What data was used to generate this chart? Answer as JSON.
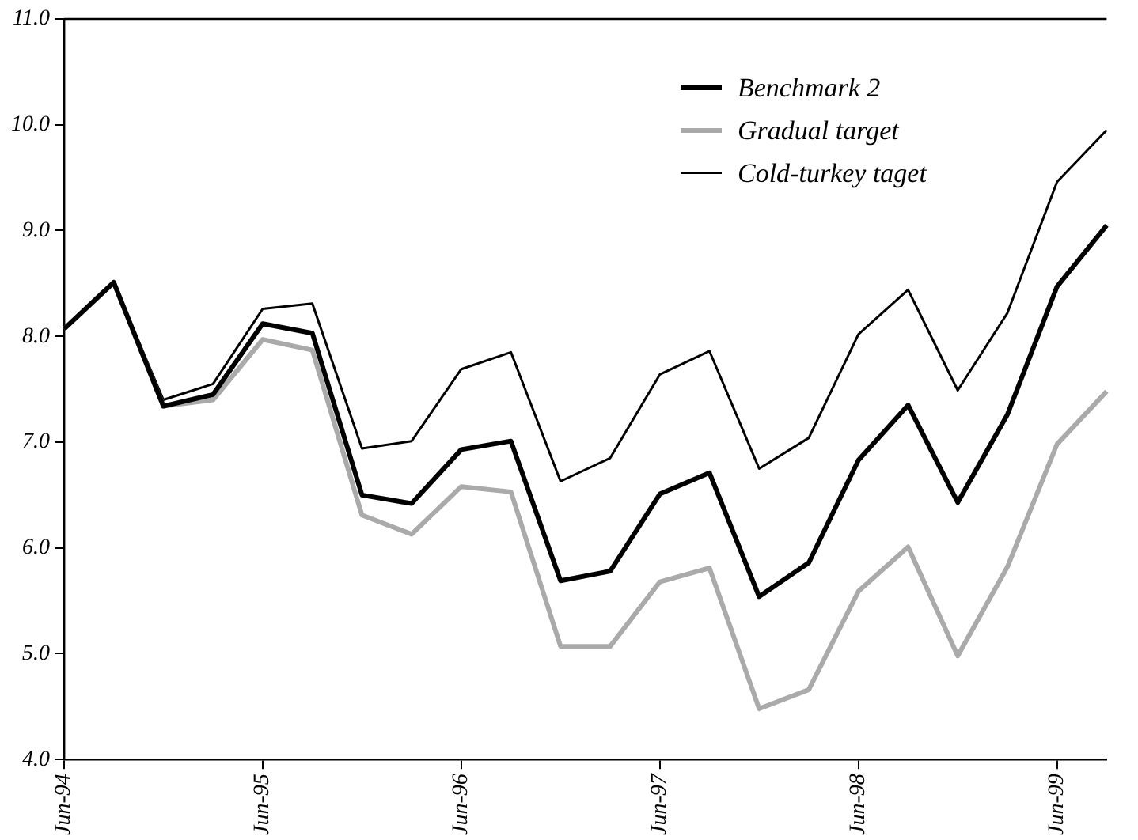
{
  "chart_data": {
    "type": "line",
    "categories": [
      "Jun-94",
      null,
      null,
      null,
      "Jun-95",
      null,
      null,
      null,
      "Jun-96",
      null,
      null,
      null,
      "Jun-97",
      null,
      null,
      null,
      "Jun-98",
      null,
      null,
      null,
      "Jun-99",
      null
    ],
    "series": [
      {
        "name": "Benchmark 2",
        "color": "#000000",
        "values": [
          8.07,
          8.51,
          7.34,
          7.45,
          8.12,
          8.03,
          6.5,
          6.42,
          6.93,
          7.01,
          5.69,
          5.78,
          6.51,
          6.71,
          5.54,
          5.86,
          6.83,
          7.35,
          6.43,
          7.26,
          8.47,
          9.05
        ]
      },
      {
        "name": "Gradual target",
        "color": "#aaaaaa",
        "values": [
          8.07,
          8.51,
          7.34,
          7.4,
          7.97,
          7.87,
          6.31,
          6.13,
          6.58,
          6.53,
          5.07,
          5.07,
          5.68,
          5.81,
          4.48,
          4.66,
          5.59,
          6.01,
          4.98,
          5.82,
          6.98,
          7.48
        ]
      },
      {
        "name": "Cold-turkey taget",
        "color": "#000000",
        "values": [
          8.07,
          8.51,
          7.4,
          7.55,
          8.26,
          8.31,
          6.94,
          7.01,
          7.69,
          7.85,
          6.63,
          6.85,
          7.64,
          7.86,
          6.75,
          7.04,
          8.02,
          8.44,
          7.49,
          8.22,
          9.46,
          9.95
        ]
      }
    ],
    "ylim": [
      4,
      11
    ],
    "yticks": [
      {
        "value": 4,
        "label": "4.0"
      },
      {
        "value": 5,
        "label": "5.0"
      },
      {
        "value": 6,
        "label": "6.0"
      },
      {
        "value": 7,
        "label": "7.0"
      },
      {
        "value": 8,
        "label": "8.0"
      },
      {
        "value": 9,
        "label": "9.0"
      },
      {
        "value": 10,
        "label": "10.0"
      },
      {
        "value": 11,
        "label": "11.0"
      }
    ],
    "grid": false,
    "legend": "top right",
    "marker": "none",
    "line_style": "solid"
  }
}
